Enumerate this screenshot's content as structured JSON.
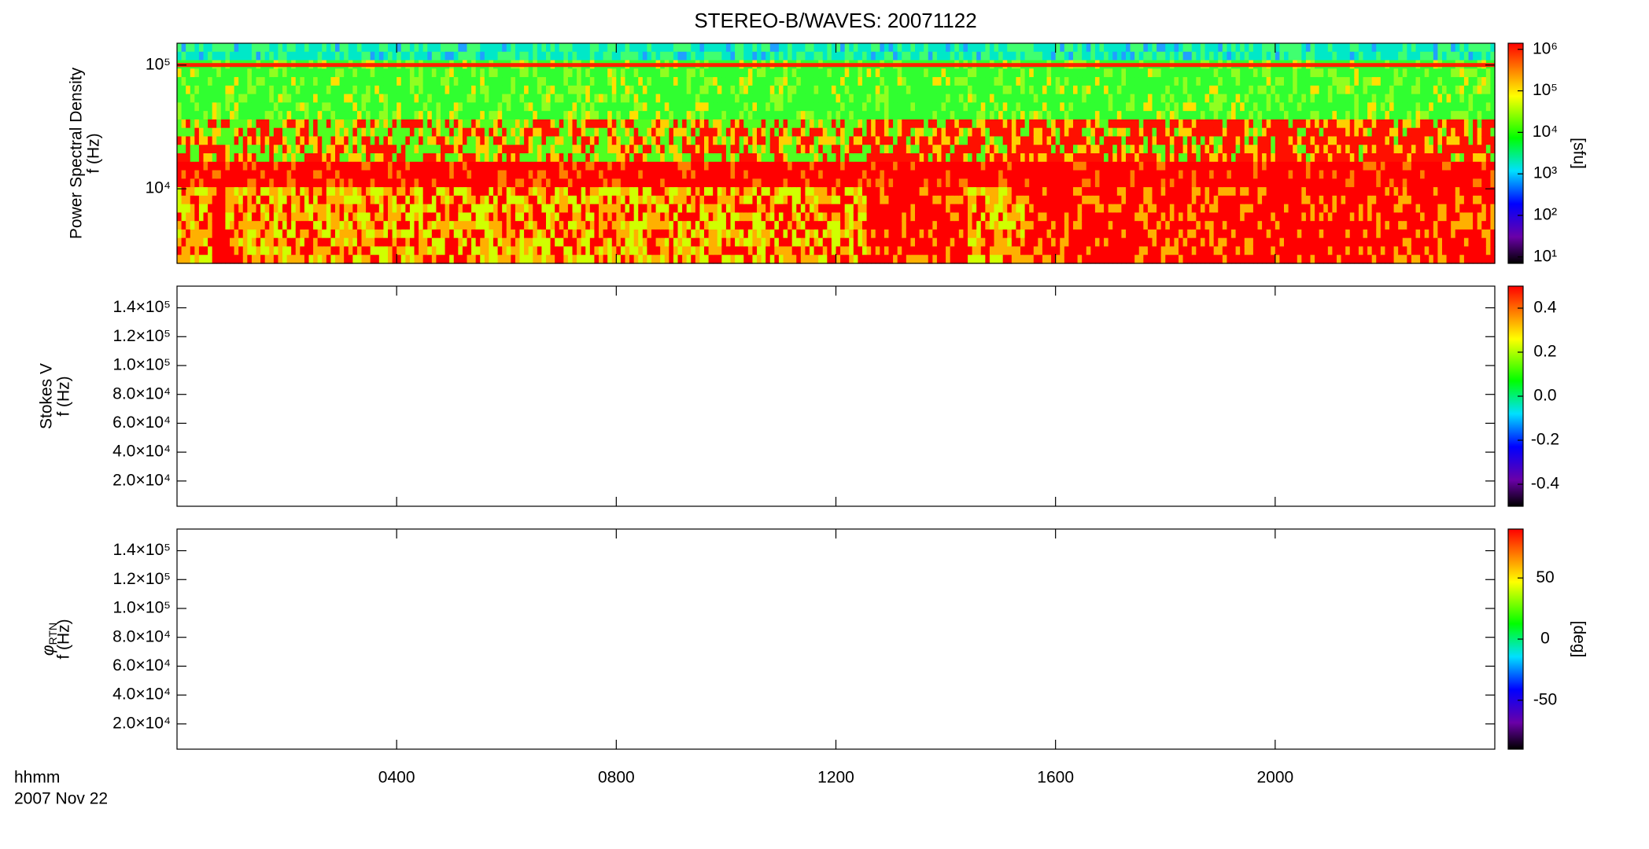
{
  "title": "STEREO-B/WAVES: 20071122",
  "time_label": "hhmm",
  "date_label": "2007 Nov 22",
  "xlim": [
    0,
    24
  ],
  "xticks": [
    {
      "value": 4,
      "label": "0400"
    },
    {
      "value": 8,
      "label": "0800"
    },
    {
      "value": 12,
      "label": "1200"
    },
    {
      "value": 16,
      "label": "1600"
    },
    {
      "value": 20,
      "label": "2000"
    }
  ],
  "chart_data": [
    {
      "type": "heatmap",
      "ylabel": [
        "Power Spectral Density",
        "f (Hz)"
      ],
      "ylog": true,
      "ylim": [
        2500,
        150000
      ],
      "yticks": [
        {
          "value": 10000,
          "label": "10⁴"
        },
        {
          "value": 100000,
          "label": "10⁵"
        }
      ],
      "colorbar": {
        "log": true,
        "lim": [
          7,
          1400000
        ],
        "label": "[sfu]",
        "ticks": [
          {
            "value": 10,
            "label": "10¹"
          },
          {
            "value": 100,
            "label": "10²"
          },
          {
            "value": 1000,
            "label": "10³"
          },
          {
            "value": 10000,
            "label": "10⁴"
          },
          {
            "value": 100000,
            "label": "10⁵"
          },
          {
            "value": 1000000,
            "label": "10⁶"
          }
        ]
      }
    },
    {
      "type": "heatmap",
      "ylabel": [
        "Stokes V",
        "f (Hz)"
      ],
      "ylog": false,
      "ylim": [
        2500,
        155000
      ],
      "yticks": [
        {
          "value": 20000,
          "label": "2.0×10⁴"
        },
        {
          "value": 40000,
          "label": "4.0×10⁴"
        },
        {
          "value": 60000,
          "label": "6.0×10⁴"
        },
        {
          "value": 80000,
          "label": "8.0×10⁴"
        },
        {
          "value": 100000,
          "label": "1.0×10⁵"
        },
        {
          "value": 120000,
          "label": "1.2×10⁵"
        },
        {
          "value": 140000,
          "label": "1.4×10⁵"
        }
      ],
      "colorbar": {
        "log": false,
        "lim": [
          -0.5,
          0.5
        ],
        "ticks": [
          -0.4,
          -0.2,
          {
            "value": 0,
            "label": "0.0"
          },
          0.2,
          0.4
        ]
      }
    },
    {
      "type": "heatmap",
      "ylabel_symbol": "φ",
      "ylabel_subscript": "RTN",
      "ylabel": [
        "f (Hz)"
      ],
      "ylog": false,
      "ylim": [
        2500,
        155000
      ],
      "yticks": [
        {
          "value": 20000,
          "label": "2.0×10⁴"
        },
        {
          "value": 40000,
          "label": "4.0×10⁴"
        },
        {
          "value": 60000,
          "label": "6.0×10⁴"
        },
        {
          "value": 80000,
          "label": "8.0×10⁴"
        },
        {
          "value": 100000,
          "label": "1.0×10⁵"
        },
        {
          "value": 120000,
          "label": "1.2×10⁵"
        },
        {
          "value": 140000,
          "label": "1.4×10⁵"
        }
      ],
      "colorbar": {
        "log": false,
        "lim": [
          -90,
          90
        ],
        "label": "[deg]",
        "ticks": [
          -50,
          0,
          50
        ]
      }
    }
  ]
}
